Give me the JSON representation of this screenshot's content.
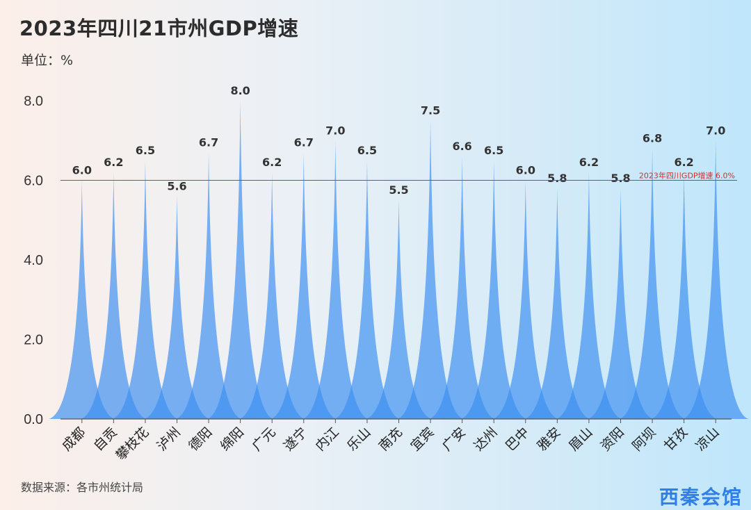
{
  "header": {
    "title": "2023年四川21市州GDP增速",
    "unit": "单位：%"
  },
  "footer": {
    "source": "数据来源：各市州统计局",
    "brand": "西秦会馆"
  },
  "colors": {
    "spike": "#3d8ff0",
    "reference_line": "#d32f2f",
    "axis": "#555555"
  },
  "chart_data": {
    "type": "area",
    "title": "2023年四川21市州GDP增速",
    "ylabel": "单位：%",
    "xlabel": "",
    "ylim": [
      0,
      8
    ],
    "yticks": [
      "0.0",
      "2.0",
      "4.0",
      "6.0",
      "8.0"
    ],
    "categories": [
      "成都",
      "自贡",
      "攀枝花",
      "泸州",
      "德阳",
      "绵阳",
      "广元",
      "遂宁",
      "内江",
      "乐山",
      "南充",
      "宜宾",
      "广安",
      "达州",
      "巴中",
      "雅安",
      "眉山",
      "资阳",
      "阿坝",
      "甘孜",
      "凉山"
    ],
    "values": [
      6.0,
      6.2,
      6.5,
      5.6,
      6.7,
      8.0,
      6.2,
      6.7,
      7.0,
      6.5,
      5.5,
      7.5,
      6.6,
      6.5,
      6.0,
      5.8,
      6.2,
      5.8,
      6.8,
      6.2,
      7.0
    ],
    "value_labels": [
      "6.0",
      "6.2",
      "6.5",
      "5.6",
      "6.7",
      "8.0",
      "6.2",
      "6.7",
      "7.0",
      "6.5",
      "5.5",
      "7.5",
      "6.6",
      "6.5",
      "6.0",
      "5.8",
      "6.2",
      "5.8",
      "6.8",
      "6.2",
      "7.0"
    ],
    "reference": {
      "value": 6.0,
      "label": "2023年四川GDP增速 6.0%"
    },
    "grid": false,
    "legend": "none"
  }
}
